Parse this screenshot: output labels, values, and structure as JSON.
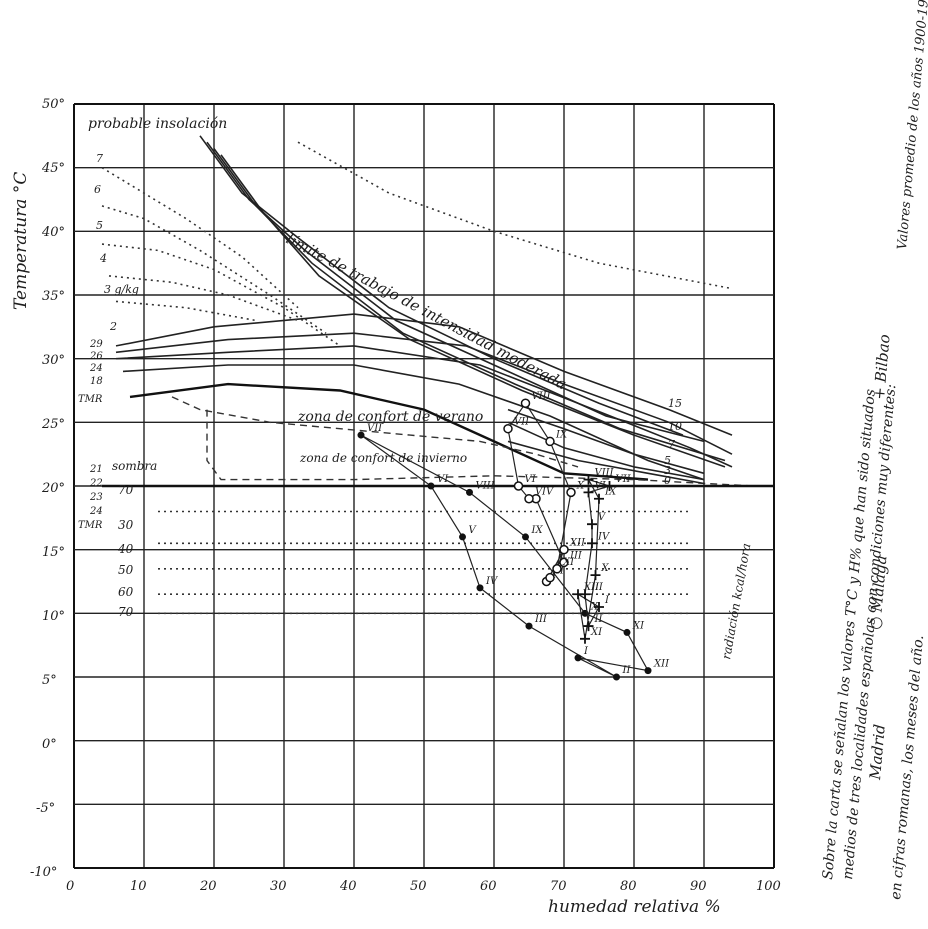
{
  "chart_data": {
    "type": "scatter",
    "xlabel": "humedad relativa %",
    "ylabel": "Temperatura °C",
    "xlim": [
      0,
      100
    ],
    "ylim": [
      -10,
      50
    ],
    "x_ticks": [
      "0",
      "10",
      "20",
      "30",
      "40",
      "50",
      "60",
      "70",
      "80",
      "90",
      "100"
    ],
    "y_ticks": [
      "50°",
      "45°",
      "40°",
      "35°",
      "30°",
      "25°",
      "20°",
      "15°",
      "10°",
      "5°",
      "0°",
      "-5°",
      "-10°"
    ],
    "grid": true,
    "annotations": {
      "top_label": "probable insolación",
      "heat_limit": "límite de trabajo de intensidad moderada",
      "comfort_summer": "zona de confort de verano",
      "comfort_winter": "zona de confort de invierno",
      "sombra": "sombra",
      "tmr": "TMR",
      "radiation": "radiación kcal/hora",
      "gkg": "3 g/kg",
      "wind_left": [
        "7",
        "6",
        "5",
        "4",
        "3 g/kg",
        "2"
      ],
      "tmr_upper": [
        "29",
        "26",
        "24",
        "18"
      ],
      "tmr_lower": [
        "21",
        "22",
        "23",
        "24"
      ],
      "radiation_values": [
        "70",
        "30",
        "40",
        "50",
        "60",
        "70"
      ],
      "right_labels": [
        "15",
        "10",
        "7",
        "5",
        "3",
        "0"
      ]
    },
    "legend": {
      "madrid": "Madrid",
      "malaga": "○ Málaga",
      "bilbao": "+ Bilbao"
    },
    "side_notes": [
      "Sobre la carta se señalan los valores T°C y H% que han sido situados",
      "medios de tres localidades españolas con condiciones muy diferentes:",
      "en cifras romanas, los meses del año.",
      "Valores promedio de los años 1900-1930."
    ],
    "series": [
      {
        "name": "Madrid",
        "months": [
          "I",
          "II",
          "III",
          "IV",
          "V",
          "VI",
          "VII",
          "VIII",
          "IX",
          "X",
          "XI",
          "XII"
        ],
        "x": [
          72,
          77.5,
          65,
          58,
          55.5,
          51,
          41,
          56.5,
          64.5,
          73,
          79,
          82
        ],
        "y": [
          6.5,
          5,
          9,
          12,
          16,
          20,
          24,
          19.5,
          16,
          10,
          8.5,
          5.5
        ]
      },
      {
        "name": "Málaga",
        "months": [
          "I",
          "II",
          "III",
          "IV",
          "V",
          "VI",
          "VII",
          "VIII",
          "IX",
          "X",
          "XI",
          "XII"
        ],
        "x": [
          67.5,
          68,
          70,
          66,
          65,
          63.5,
          62,
          64.5,
          68,
          71,
          69,
          70
        ],
        "y": [
          12.5,
          12.8,
          14,
          19,
          19,
          20,
          24.5,
          26.5,
          23.5,
          19.5,
          13.5,
          15
        ]
      },
      {
        "name": "Bilbao",
        "months": [
          "I",
          "II",
          "III",
          "IV",
          "V",
          "VI",
          "VII",
          "VIII",
          "IX",
          "X",
          "XI",
          "XII"
        ],
        "x": [
          75,
          73.5,
          73,
          74,
          74,
          73.5,
          76.5,
          73.5,
          75,
          74.5,
          73,
          72
        ],
        "y": [
          10.5,
          9,
          11.5,
          15.5,
          17,
          19.5,
          20,
          20.5,
          19,
          13,
          8,
          11.5
        ]
      }
    ]
  }
}
